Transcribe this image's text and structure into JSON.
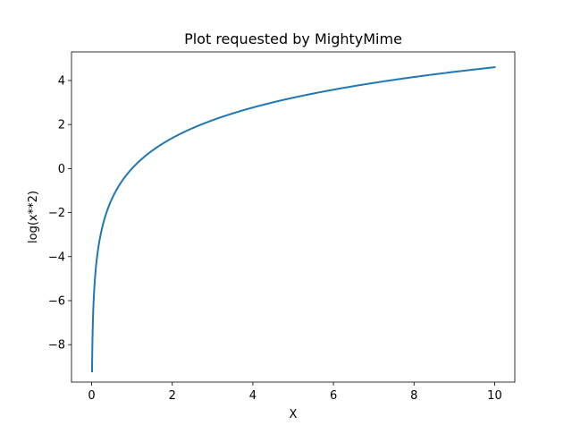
{
  "chart_data": {
    "type": "line",
    "title": "Plot requested by MightyMime",
    "xlabel": "X",
    "ylabel": "log(x**2)",
    "xlim": [
      -0.5,
      10.5
    ],
    "ylim": [
      -9.7,
      5.3
    ],
    "xticks": [
      0,
      2,
      4,
      6,
      8,
      10
    ],
    "xtick_labels": [
      "0",
      "2",
      "4",
      "6",
      "8",
      "10"
    ],
    "yticks": [
      -8,
      -6,
      -4,
      -2,
      0,
      2,
      4
    ],
    "ytick_labels": [
      "−8",
      "−6",
      "−4",
      "−2",
      "0",
      "2",
      "4"
    ],
    "grid": false,
    "series": [
      {
        "color": "#1f77b4",
        "function": "log(x**2)",
        "x_range": [
          0.01,
          10
        ],
        "x": [
          0.01,
          0.02,
          0.05,
          0.1,
          0.2,
          0.3,
          0.5,
          0.75,
          1,
          1.5,
          2,
          2.5,
          3,
          4,
          5,
          6,
          7,
          8,
          9,
          10
        ],
        "y": [
          -9.21,
          -7.82,
          -5.99,
          -4.61,
          -3.22,
          -2.41,
          -1.39,
          -0.58,
          0.0,
          0.81,
          1.39,
          1.83,
          2.2,
          2.77,
          3.22,
          3.58,
          3.89,
          4.16,
          4.39,
          4.61
        ]
      }
    ]
  }
}
